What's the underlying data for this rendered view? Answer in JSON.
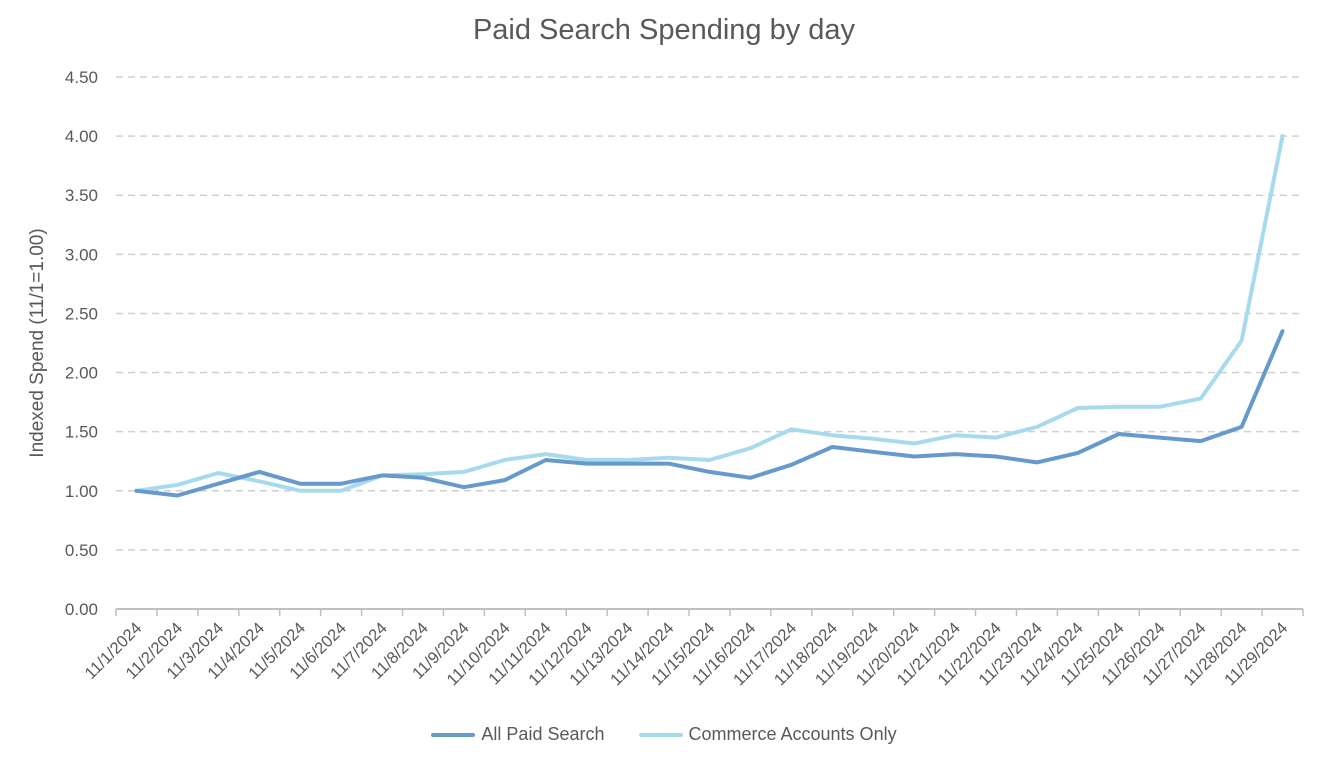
{
  "chart_data": {
    "type": "line",
    "title": "Paid Search Spending by day",
    "xlabel": "",
    "ylabel": "Indexed Spend (11/1=1.00)",
    "ylim": [
      0,
      4.5
    ],
    "yticks": [
      "0.00",
      "0.50",
      "1.00",
      "1.50",
      "2.00",
      "2.50",
      "3.00",
      "3.50",
      "4.00",
      "4.50"
    ],
    "grid": true,
    "legend_position": "bottom",
    "categories": [
      "11/1/2024",
      "11/2/2024",
      "11/3/2024",
      "11/4/2024",
      "11/5/2024",
      "11/6/2024",
      "11/7/2024",
      "11/8/2024",
      "11/9/2024",
      "11/10/2024",
      "11/11/2024",
      "11/12/2024",
      "11/13/2024",
      "11/14/2024",
      "11/15/2024",
      "11/16/2024",
      "11/17/2024",
      "11/18/2024",
      "11/19/2024",
      "11/20/2024",
      "11/21/2024",
      "11/22/2024",
      "11/23/2024",
      "11/24/2024",
      "11/25/2024",
      "11/26/2024",
      "11/27/2024",
      "11/28/2024",
      "11/29/2024"
    ],
    "series": [
      {
        "name": "All Paid Search",
        "color": "#6699CC",
        "values": [
          1.0,
          0.96,
          1.06,
          1.16,
          1.06,
          1.06,
          1.13,
          1.11,
          1.03,
          1.09,
          1.26,
          1.23,
          1.23,
          1.23,
          1.16,
          1.11,
          1.22,
          1.37,
          1.33,
          1.29,
          1.31,
          1.29,
          1.24,
          1.32,
          1.48,
          1.45,
          1.42,
          1.54,
          2.35
        ]
      },
      {
        "name": "Commerce Accounts Only",
        "color": "#A8DAEE",
        "values": [
          1.0,
          1.05,
          1.15,
          1.08,
          1.0,
          1.0,
          1.13,
          1.14,
          1.16,
          1.26,
          1.31,
          1.26,
          1.26,
          1.28,
          1.26,
          1.36,
          1.52,
          1.47,
          1.44,
          1.4,
          1.47,
          1.45,
          1.54,
          1.7,
          1.71,
          1.71,
          1.78,
          2.27,
          4.0
        ]
      }
    ]
  }
}
